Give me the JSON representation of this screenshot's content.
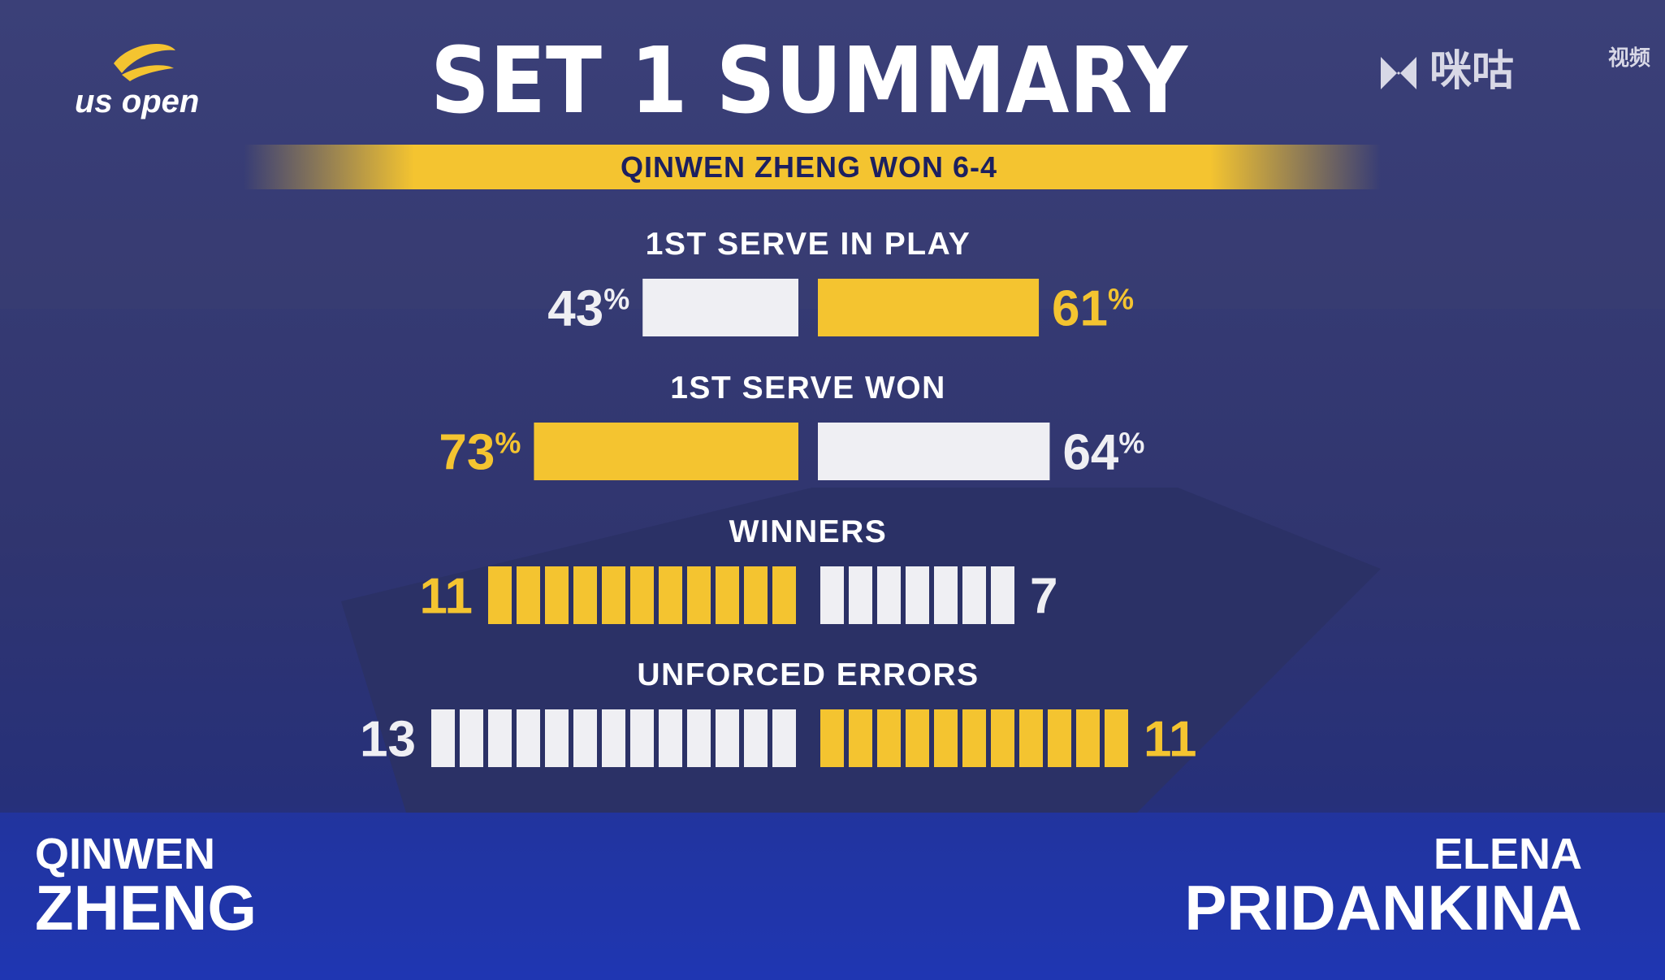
{
  "logo": {
    "text": "us open"
  },
  "watermark": {
    "brand": "咪咕",
    "sub": "视频"
  },
  "title": "SET 1 SUMMARY",
  "result": "QINWEN ZHENG WON 6-4",
  "colors": {
    "highlight": "#f4c430",
    "normal": "#efeff3"
  },
  "stats": [
    {
      "label": "1ST SERVE IN PLAY",
      "unit": "%",
      "display": "bar",
      "left": 43,
      "right": 61,
      "highlight": "right"
    },
    {
      "label": "1ST SERVE WON",
      "unit": "%",
      "display": "bar",
      "left": 73,
      "right": 64,
      "highlight": "left"
    },
    {
      "label": "WINNERS",
      "display": "segments",
      "left": 11,
      "right": 7,
      "highlight": "left"
    },
    {
      "label": "UNFORCED ERRORS",
      "display": "segments",
      "left": 13,
      "right": 11,
      "highlight": "right"
    }
  ],
  "players": {
    "left": {
      "first": "QINWEN",
      "last": "ZHENG"
    },
    "right": {
      "first": "ELENA",
      "last": "PRIDANKINA"
    }
  }
}
